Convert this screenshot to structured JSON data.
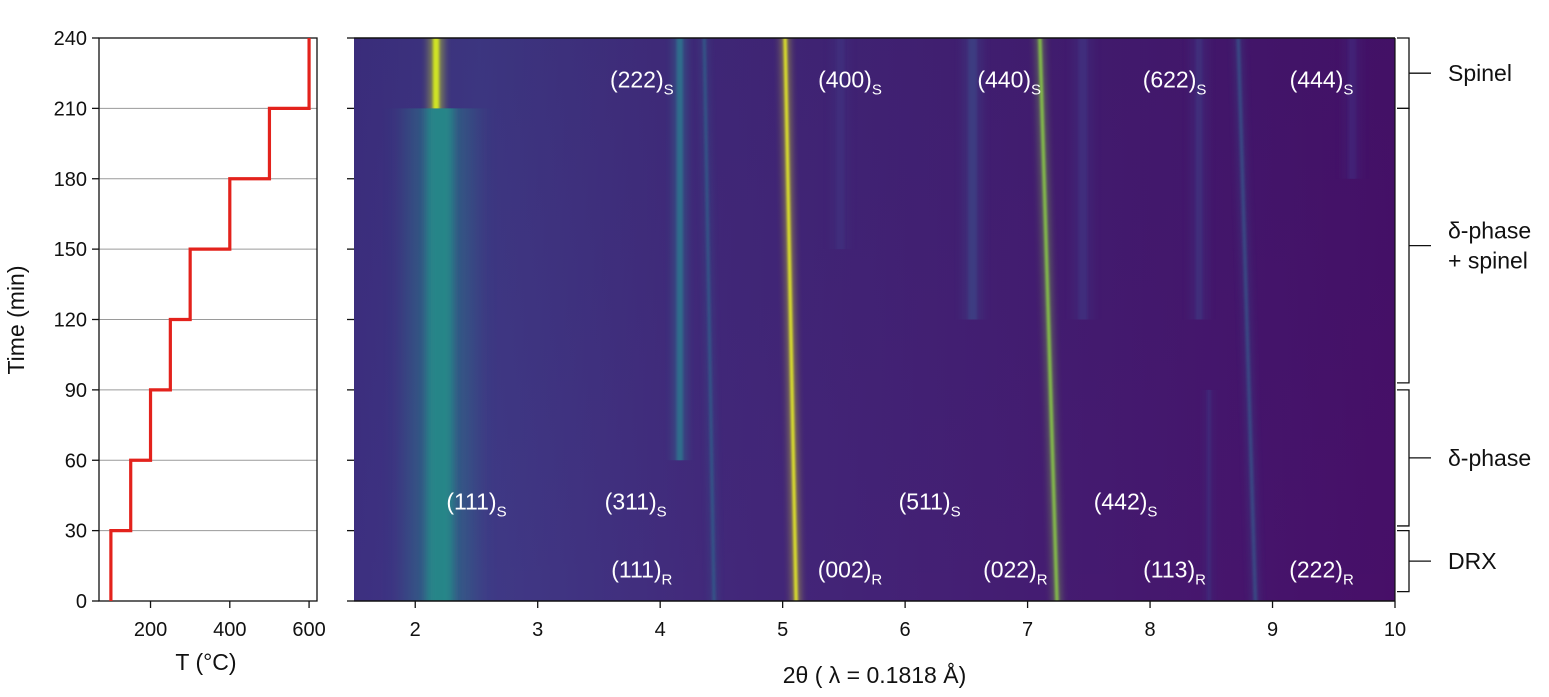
{
  "chart_data": [
    {
      "type": "line",
      "title": "",
      "xlabel": "T (°C)",
      "ylabel": "Time (min)",
      "xlim": [
        70,
        620
      ],
      "ylim": [
        0,
        240
      ],
      "x_ticks": [
        "200",
        "400",
        "600"
      ],
      "x_tick_values": [
        200,
        400,
        600
      ],
      "y_ticks": [
        "0",
        "30",
        "60",
        "90",
        "120",
        "150",
        "180",
        "210",
        "240"
      ],
      "y_tick_values": [
        0,
        30,
        60,
        90,
        120,
        150,
        180,
        210,
        240
      ],
      "grid": "horizontal",
      "line_color": "#e3221c",
      "series": [
        {
          "x": [
            100,
            100,
            150,
            150,
            200,
            200,
            250,
            250,
            300,
            300,
            400,
            400,
            500,
            500,
            600,
            600
          ],
          "y": [
            0,
            30,
            30,
            60,
            60,
            90,
            90,
            120,
            120,
            150,
            150,
            180,
            180,
            210,
            210,
            240
          ]
        }
      ]
    },
    {
      "type": "heatmap",
      "title": "",
      "xlabel": "2θ ( λ = 0.1818 Å)",
      "ylabel": "",
      "xlim": [
        1.5,
        10
      ],
      "ylim": [
        0,
        240
      ],
      "x_ticks": [
        "2",
        "3",
        "4",
        "5",
        "6",
        "7",
        "8",
        "9",
        "10"
      ],
      "x_tick_values": [
        2,
        3,
        4,
        5,
        6,
        7,
        8,
        9,
        10
      ],
      "y_tick_values": [
        0,
        30,
        60,
        90,
        120,
        150,
        180,
        210,
        240
      ],
      "colormap": [
        "#440e6b",
        "#40337f",
        "#2f6a8e",
        "#22a384",
        "#57c665",
        "#c2df23",
        "#f0f921"
      ],
      "peaks": [
        {
          "two_theta": [
            2.2,
            2.2
          ],
          "time": [
            0,
            210
          ],
          "intensity": 0.42,
          "width": 0.22
        },
        {
          "two_theta": [
            2.17,
            2.17
          ],
          "time": [
            210,
            240
          ],
          "intensity": 0.9,
          "width": 0.05
        },
        {
          "two_theta": [
            4.16,
            4.16
          ],
          "time": [
            60,
            240
          ],
          "intensity": 0.35,
          "width": 0.05
        },
        {
          "two_theta": [
            4.44,
            4.36
          ],
          "time": [
            0,
            240
          ],
          "intensity": 0.3,
          "width": 0.02
        },
        {
          "two_theta": [
            5.11,
            5.02
          ],
          "time": [
            0,
            240
          ],
          "intensity": 1.0,
          "width": 0.025
        },
        {
          "two_theta": [
            5.47,
            5.47
          ],
          "time": [
            150,
            240
          ],
          "intensity": 0.15,
          "width": 0.06
        },
        {
          "two_theta": [
            6.55,
            6.55
          ],
          "time": [
            120,
            240
          ],
          "intensity": 0.2,
          "width": 0.07
        },
        {
          "two_theta": [
            7.24,
            7.1
          ],
          "time": [
            0,
            240
          ],
          "intensity": 0.75,
          "width": 0.025
        },
        {
          "two_theta": [
            7.45,
            7.45
          ],
          "time": [
            120,
            240
          ],
          "intensity": 0.15,
          "width": 0.07
        },
        {
          "two_theta": [
            8.48,
            8.48
          ],
          "time": [
            0,
            90
          ],
          "intensity": 0.12,
          "width": 0.03
        },
        {
          "two_theta": [
            8.4,
            8.4
          ],
          "time": [
            120,
            240
          ],
          "intensity": 0.14,
          "width": 0.06
        },
        {
          "two_theta": [
            8.86,
            8.72
          ],
          "time": [
            0,
            240
          ],
          "intensity": 0.25,
          "width": 0.025
        },
        {
          "two_theta": [
            9.65,
            9.65
          ],
          "time": [
            180,
            240
          ],
          "intensity": 0.1,
          "width": 0.06
        }
      ],
      "annotations": [
        {
          "base": "(222)",
          "sub": "S",
          "two_theta": 3.85,
          "time": 219
        },
        {
          "base": "(400)",
          "sub": "S",
          "two_theta": 5.55,
          "time": 219
        },
        {
          "base": "(440)",
          "sub": "S",
          "two_theta": 6.85,
          "time": 219
        },
        {
          "base": "(622)",
          "sub": "S",
          "two_theta": 8.2,
          "time": 219
        },
        {
          "base": "(444)",
          "sub": "S",
          "two_theta": 9.4,
          "time": 219
        },
        {
          "base": "(111)",
          "sub": "S",
          "two_theta": 2.5,
          "time": 39
        },
        {
          "base": "(311)",
          "sub": "S",
          "two_theta": 3.8,
          "time": 39
        },
        {
          "base": "(511)",
          "sub": "S",
          "two_theta": 6.2,
          "time": 39
        },
        {
          "base": "(442)",
          "sub": "S",
          "two_theta": 7.8,
          "time": 39
        },
        {
          "base": "(111)",
          "sub": "R",
          "two_theta": 3.85,
          "time": 10
        },
        {
          "base": "(002)",
          "sub": "R",
          "two_theta": 5.55,
          "time": 10
        },
        {
          "base": "(022)",
          "sub": "R",
          "two_theta": 6.9,
          "time": 10
        },
        {
          "base": "(113)",
          "sub": "R",
          "two_theta": 8.2,
          "time": 10
        },
        {
          "base": "(222)",
          "sub": "R",
          "two_theta": 9.4,
          "time": 10
        }
      ],
      "phase_regions": [
        {
          "label_lines": [
            "Spinel"
          ],
          "time": [
            210,
            240
          ]
        },
        {
          "label_lines": [
            "δ-phase",
            "+ spinel"
          ],
          "time": [
            93,
            210
          ]
        },
        {
          "label_lines": [
            "δ-phase"
          ],
          "time": [
            32,
            90
          ]
        },
        {
          "label_lines": [
            "DRX"
          ],
          "time": [
            4,
            30
          ]
        }
      ]
    }
  ]
}
